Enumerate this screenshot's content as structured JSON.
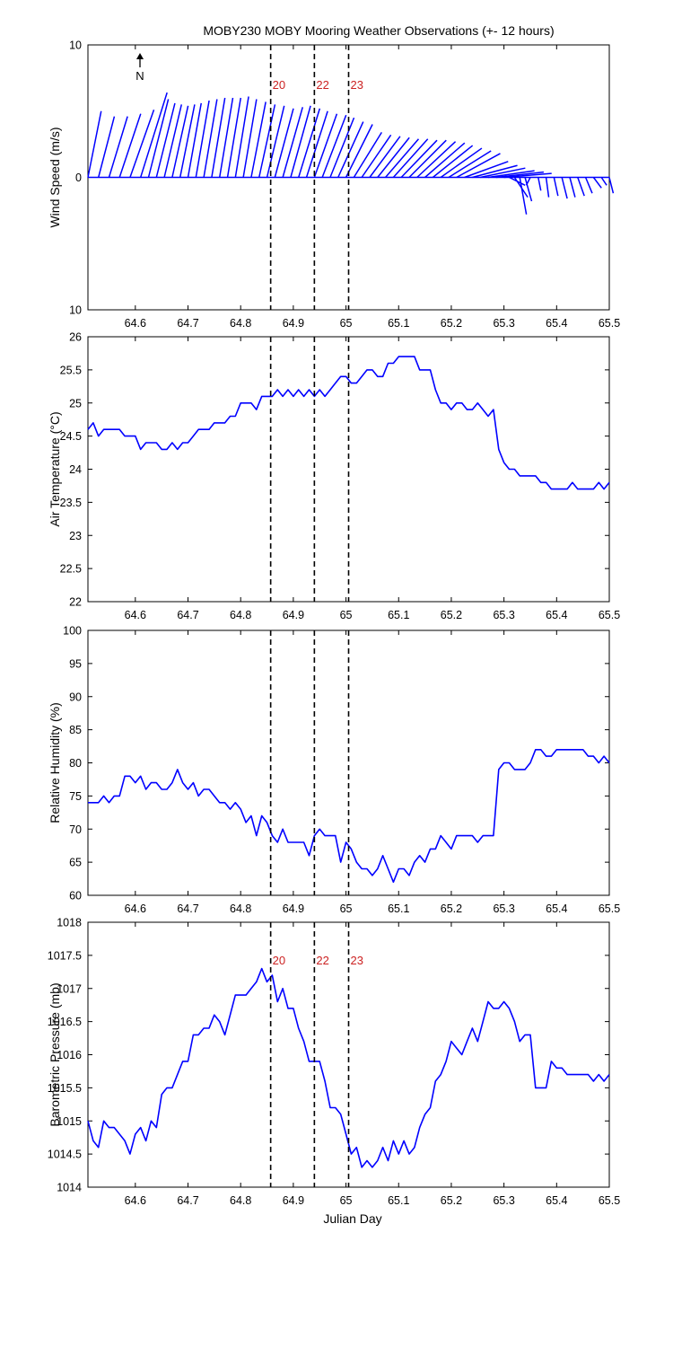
{
  "figure": {
    "title": "MOBY230 MOBY Mooring Weather Observations (+- 12 hours)",
    "xlabel": "Julian Day",
    "north_label": "N"
  },
  "colors": {
    "series": "#0000ff",
    "marker_line": "#000000",
    "marker_label": "#cc2222",
    "axes": "#000000"
  },
  "chart_data": [
    {
      "type": "line",
      "variant": "wind-stick-plot",
      "ylabel": "Wind Speed (m/s)",
      "xlim": [
        64.51,
        65.5
      ],
      "ylim": [
        -10,
        10
      ],
      "yticks": [
        -10,
        0,
        10
      ],
      "ytick_labels": [
        "10",
        "0",
        "10"
      ],
      "xticks": [
        64.6,
        64.7,
        64.8,
        64.9,
        65.0,
        65.1,
        65.2,
        65.3,
        65.4,
        65.5
      ],
      "xtick_labels": [
        "64.6",
        "64.7",
        "64.8",
        "64.9",
        "65",
        "65.1",
        "65.2",
        "65.3",
        "65.4",
        "65.5"
      ],
      "markers": [
        {
          "x": 64.857,
          "label": "20"
        },
        {
          "x": 64.94,
          "label": "22"
        },
        {
          "x": 65.005,
          "label": "23"
        }
      ],
      "sticks": [
        {
          "x": 64.51,
          "u": 1.0,
          "v": 5.0
        },
        {
          "x": 64.53,
          "u": 1.2,
          "v": 4.6
        },
        {
          "x": 64.55,
          "u": 1.4,
          "v": 4.6
        },
        {
          "x": 64.57,
          "u": 1.6,
          "v": 4.8
        },
        {
          "x": 64.59,
          "u": 1.8,
          "v": 5.1
        },
        {
          "x": 64.61,
          "u": 2.0,
          "v": 6.4
        },
        {
          "x": 64.625,
          "u": 1.5,
          "v": 5.9
        },
        {
          "x": 64.64,
          "u": 1.4,
          "v": 5.6
        },
        {
          "x": 64.655,
          "u": 1.3,
          "v": 5.5
        },
        {
          "x": 64.67,
          "u": 1.2,
          "v": 5.4
        },
        {
          "x": 64.685,
          "u": 1.1,
          "v": 5.5
        },
        {
          "x": 64.7,
          "u": 1.0,
          "v": 5.6
        },
        {
          "x": 64.715,
          "u": 1.0,
          "v": 5.8
        },
        {
          "x": 64.73,
          "u": 1.0,
          "v": 5.9
        },
        {
          "x": 64.745,
          "u": 1.0,
          "v": 6.0
        },
        {
          "x": 64.76,
          "u": 1.0,
          "v": 6.0
        },
        {
          "x": 64.775,
          "u": 1.0,
          "v": 6.0
        },
        {
          "x": 64.79,
          "u": 1.0,
          "v": 6.1
        },
        {
          "x": 64.805,
          "u": 1.0,
          "v": 5.9
        },
        {
          "x": 64.82,
          "u": 1.1,
          "v": 5.7
        },
        {
          "x": 64.835,
          "u": 1.2,
          "v": 5.5
        },
        {
          "x": 64.85,
          "u": 1.3,
          "v": 5.4
        },
        {
          "x": 64.865,
          "u": 1.4,
          "v": 5.2
        },
        {
          "x": 64.88,
          "u": 1.5,
          "v": 5.3
        },
        {
          "x": 64.895,
          "u": 1.5,
          "v": 5.4
        },
        {
          "x": 64.91,
          "u": 1.6,
          "v": 5.2
        },
        {
          "x": 64.925,
          "u": 1.6,
          "v": 5.0
        },
        {
          "x": 64.94,
          "u": 1.7,
          "v": 4.8
        },
        {
          "x": 64.955,
          "u": 1.8,
          "v": 4.7
        },
        {
          "x": 64.97,
          "u": 1.8,
          "v": 4.5
        },
        {
          "x": 64.985,
          "u": 1.9,
          "v": 4.2
        },
        {
          "x": 65.0,
          "u": 2.0,
          "v": 4.0
        },
        {
          "x": 65.015,
          "u": 2.1,
          "v": 3.4
        },
        {
          "x": 65.03,
          "u": 2.2,
          "v": 3.2
        },
        {
          "x": 65.045,
          "u": 2.3,
          "v": 3.1
        },
        {
          "x": 65.06,
          "u": 2.4,
          "v": 3.0
        },
        {
          "x": 65.075,
          "u": 2.5,
          "v": 2.9
        },
        {
          "x": 65.09,
          "u": 2.6,
          "v": 2.9
        },
        {
          "x": 65.105,
          "u": 2.7,
          "v": 2.8
        },
        {
          "x": 65.12,
          "u": 2.8,
          "v": 2.8
        },
        {
          "x": 65.135,
          "u": 2.9,
          "v": 2.7
        },
        {
          "x": 65.15,
          "u": 3.0,
          "v": 2.6
        },
        {
          "x": 65.165,
          "u": 3.0,
          "v": 2.4
        },
        {
          "x": 65.18,
          "u": 3.1,
          "v": 2.2
        },
        {
          "x": 65.195,
          "u": 3.2,
          "v": 2.0
        },
        {
          "x": 65.21,
          "u": 3.3,
          "v": 1.8
        },
        {
          "x": 65.225,
          "u": 3.3,
          "v": 1.2
        },
        {
          "x": 65.24,
          "u": 3.4,
          "v": 0.9
        },
        {
          "x": 65.255,
          "u": 3.4,
          "v": 0.7
        },
        {
          "x": 65.27,
          "u": 3.5,
          "v": 0.5
        },
        {
          "x": 65.285,
          "u": 3.6,
          "v": 0.4
        },
        {
          "x": 65.3,
          "u": 3.6,
          "v": 0.3
        },
        {
          "x": 65.31,
          "u": 1.2,
          "v": -0.6
        },
        {
          "x": 65.32,
          "u": 1.0,
          "v": -1.5
        },
        {
          "x": 65.33,
          "u": 0.5,
          "v": -2.8
        },
        {
          "x": 65.34,
          "u": 0.5,
          "v": -1.8
        },
        {
          "x": 65.35,
          "u": -0.3,
          "v": -0.6
        },
        {
          "x": 65.365,
          "u": 0.2,
          "v": -1.0
        },
        {
          "x": 65.38,
          "u": 0.2,
          "v": -1.5
        },
        {
          "x": 65.395,
          "u": 0.3,
          "v": -1.4
        },
        {
          "x": 65.41,
          "u": 0.4,
          "v": -1.6
        },
        {
          "x": 65.425,
          "u": 0.4,
          "v": -1.5
        },
        {
          "x": 65.44,
          "u": 0.5,
          "v": -1.4
        },
        {
          "x": 65.455,
          "u": 0.5,
          "v": -1.2
        },
        {
          "x": 65.47,
          "u": 0.6,
          "v": -0.8
        },
        {
          "x": 65.485,
          "u": 0.4,
          "v": -0.6
        },
        {
          "x": 65.5,
          "u": 0.3,
          "v": -1.2
        }
      ]
    },
    {
      "type": "line",
      "ylabel": "Air Temperature (°C)",
      "xlim": [
        64.51,
        65.5
      ],
      "ylim": [
        22,
        26
      ],
      "yticks": [
        22,
        22.5,
        23,
        23.5,
        24,
        24.5,
        25,
        25.5,
        26
      ],
      "ytick_labels": [
        "22",
        "22.5",
        "23",
        "23.5",
        "24",
        "24.5",
        "25",
        "25.5",
        "26"
      ],
      "xticks": [
        64.6,
        64.7,
        64.8,
        64.9,
        65.0,
        65.1,
        65.2,
        65.3,
        65.4,
        65.5
      ],
      "xtick_labels": [
        "64.6",
        "64.7",
        "64.8",
        "64.9",
        "65",
        "65.1",
        "65.2",
        "65.3",
        "65.4",
        "65.5"
      ],
      "markers": [
        {
          "x": 64.857,
          "label": ""
        },
        {
          "x": 64.94,
          "label": ""
        },
        {
          "x": 65.005,
          "label": ""
        }
      ],
      "x": [
        64.51,
        64.52,
        64.53,
        64.54,
        64.55,
        64.56,
        64.57,
        64.58,
        64.59,
        64.6,
        64.61,
        64.62,
        64.63,
        64.64,
        64.65,
        64.66,
        64.67,
        64.68,
        64.69,
        64.7,
        64.71,
        64.72,
        64.73,
        64.74,
        64.75,
        64.76,
        64.77,
        64.78,
        64.79,
        64.8,
        64.81,
        64.82,
        64.83,
        64.84,
        64.85,
        64.86,
        64.87,
        64.88,
        64.89,
        64.9,
        64.91,
        64.92,
        64.93,
        64.94,
        64.95,
        64.96,
        64.97,
        64.98,
        64.99,
        65.0,
        65.01,
        65.02,
        65.03,
        65.04,
        65.05,
        65.06,
        65.07,
        65.08,
        65.09,
        65.1,
        65.11,
        65.12,
        65.13,
        65.14,
        65.15,
        65.16,
        65.17,
        65.18,
        65.19,
        65.2,
        65.21,
        65.22,
        65.23,
        65.24,
        65.25,
        65.26,
        65.27,
        65.28,
        65.29,
        65.3,
        65.31,
        65.32,
        65.33,
        65.34,
        65.35,
        65.36,
        65.37,
        65.38,
        65.39,
        65.4,
        65.41,
        65.42,
        65.43,
        65.44,
        65.45,
        65.46,
        65.47,
        65.48,
        65.49,
        65.5
      ],
      "y": [
        24.6,
        24.7,
        24.5,
        24.6,
        24.6,
        24.6,
        24.6,
        24.5,
        24.5,
        24.5,
        24.3,
        24.4,
        24.4,
        24.4,
        24.3,
        24.3,
        24.4,
        24.3,
        24.4,
        24.4,
        24.5,
        24.6,
        24.6,
        24.6,
        24.7,
        24.7,
        24.7,
        24.8,
        24.8,
        25.0,
        25.0,
        25.0,
        24.9,
        25.1,
        25.1,
        25.1,
        25.2,
        25.1,
        25.2,
        25.1,
        25.2,
        25.1,
        25.2,
        25.1,
        25.2,
        25.1,
        25.2,
        25.3,
        25.4,
        25.4,
        25.3,
        25.3,
        25.4,
        25.5,
        25.5,
        25.4,
        25.4,
        25.6,
        25.6,
        25.7,
        25.7,
        25.7,
        25.7,
        25.5,
        25.5,
        25.5,
        25.2,
        25.0,
        25.0,
        24.9,
        25.0,
        25.0,
        24.9,
        24.9,
        25.0,
        24.9,
        24.8,
        24.9,
        24.3,
        24.1,
        24.0,
        24.0,
        23.9,
        23.9,
        23.9,
        23.9,
        23.8,
        23.8,
        23.7,
        23.7,
        23.7,
        23.7,
        23.8,
        23.7,
        23.7,
        23.7,
        23.7,
        23.8,
        23.7,
        23.8
      ]
    },
    {
      "type": "line",
      "ylabel": "Relative Humidity (%)",
      "xlim": [
        64.51,
        65.5
      ],
      "ylim": [
        60,
        100
      ],
      "yticks": [
        60,
        65,
        70,
        75,
        80,
        85,
        90,
        95,
        100
      ],
      "ytick_labels": [
        "60",
        "65",
        "70",
        "75",
        "80",
        "85",
        "90",
        "95",
        "100"
      ],
      "xticks": [
        64.6,
        64.7,
        64.8,
        64.9,
        65.0,
        65.1,
        65.2,
        65.3,
        65.4,
        65.5
      ],
      "xtick_labels": [
        "64.6",
        "64.7",
        "64.8",
        "64.9",
        "65",
        "65.1",
        "65.2",
        "65.3",
        "65.4",
        "65.5"
      ],
      "markers": [
        {
          "x": 64.857,
          "label": ""
        },
        {
          "x": 64.94,
          "label": ""
        },
        {
          "x": 65.005,
          "label": ""
        }
      ],
      "x": [
        64.51,
        64.52,
        64.53,
        64.54,
        64.55,
        64.56,
        64.57,
        64.58,
        64.59,
        64.6,
        64.61,
        64.62,
        64.63,
        64.64,
        64.65,
        64.66,
        64.67,
        64.68,
        64.69,
        64.7,
        64.71,
        64.72,
        64.73,
        64.74,
        64.75,
        64.76,
        64.77,
        64.78,
        64.79,
        64.8,
        64.81,
        64.82,
        64.83,
        64.84,
        64.85,
        64.86,
        64.87,
        64.88,
        64.89,
        64.9,
        64.91,
        64.92,
        64.93,
        64.94,
        64.95,
        64.96,
        64.97,
        64.98,
        64.99,
        65.0,
        65.01,
        65.02,
        65.03,
        65.04,
        65.05,
        65.06,
        65.07,
        65.08,
        65.09,
        65.1,
        65.11,
        65.12,
        65.13,
        65.14,
        65.15,
        65.16,
        65.17,
        65.18,
        65.19,
        65.2,
        65.21,
        65.22,
        65.23,
        65.24,
        65.25,
        65.26,
        65.27,
        65.28,
        65.29,
        65.3,
        65.31,
        65.32,
        65.33,
        65.34,
        65.35,
        65.36,
        65.37,
        65.38,
        65.39,
        65.4,
        65.41,
        65.42,
        65.43,
        65.44,
        65.45,
        65.46,
        65.47,
        65.48,
        65.49,
        65.5
      ],
      "y": [
        74,
        74,
        74,
        75,
        74,
        75,
        75,
        78,
        78,
        77,
        78,
        76,
        77,
        77,
        76,
        76,
        77,
        79,
        77,
        76,
        77,
        75,
        76,
        76,
        75,
        74,
        74,
        73,
        74,
        73,
        71,
        72,
        69,
        72,
        71,
        69,
        68,
        70,
        68,
        68,
        68,
        68,
        66,
        69,
        70,
        69,
        69,
        69,
        65,
        68,
        67,
        65,
        64,
        64,
        63,
        64,
        66,
        64,
        62,
        64,
        64,
        63,
        65,
        66,
        65,
        67,
        67,
        69,
        68,
        67,
        69,
        69,
        69,
        69,
        68,
        69,
        69,
        69,
        79,
        80,
        80,
        79,
        79,
        79,
        80,
        82,
        82,
        81,
        81,
        82,
        82,
        82,
        82,
        82,
        82,
        81,
        81,
        80,
        81,
        80
      ]
    },
    {
      "type": "line",
      "ylabel": "Barometric Pressure (mb)",
      "xlim": [
        64.51,
        65.5
      ],
      "ylim": [
        1014,
        1018
      ],
      "yticks": [
        1014,
        1014.5,
        1015,
        1015.5,
        1016,
        1016.5,
        1017,
        1017.5,
        1018
      ],
      "ytick_labels": [
        "1014",
        "1014.5",
        "1015",
        "1015.5",
        "1016",
        "1016.5",
        "1017",
        "1017.5",
        "1018"
      ],
      "xticks": [
        64.6,
        64.7,
        64.8,
        64.9,
        65.0,
        65.1,
        65.2,
        65.3,
        65.4,
        65.5
      ],
      "xtick_labels": [
        "64.6",
        "64.7",
        "64.8",
        "64.9",
        "65",
        "65.1",
        "65.2",
        "65.3",
        "65.4",
        "65.5"
      ],
      "markers": [
        {
          "x": 64.857,
          "label": "20"
        },
        {
          "x": 64.94,
          "label": "22"
        },
        {
          "x": 65.005,
          "label": "23"
        }
      ],
      "x": [
        64.51,
        64.52,
        64.53,
        64.54,
        64.55,
        64.56,
        64.57,
        64.58,
        64.59,
        64.6,
        64.61,
        64.62,
        64.63,
        64.64,
        64.65,
        64.66,
        64.67,
        64.68,
        64.69,
        64.7,
        64.71,
        64.72,
        64.73,
        64.74,
        64.75,
        64.76,
        64.77,
        64.78,
        64.79,
        64.8,
        64.81,
        64.82,
        64.83,
        64.84,
        64.85,
        64.86,
        64.87,
        64.88,
        64.89,
        64.9,
        64.91,
        64.92,
        64.93,
        64.94,
        64.95,
        64.96,
        64.97,
        64.98,
        64.99,
        65.0,
        65.01,
        65.02,
        65.03,
        65.04,
        65.05,
        65.06,
        65.07,
        65.08,
        65.09,
        65.1,
        65.11,
        65.12,
        65.13,
        65.14,
        65.15,
        65.16,
        65.17,
        65.18,
        65.19,
        65.2,
        65.21,
        65.22,
        65.23,
        65.24,
        65.25,
        65.26,
        65.27,
        65.28,
        65.29,
        65.3,
        65.31,
        65.32,
        65.33,
        65.34,
        65.35,
        65.36,
        65.37,
        65.38,
        65.39,
        65.4,
        65.41,
        65.42,
        65.43,
        65.44,
        65.45,
        65.46,
        65.47,
        65.48,
        65.49,
        65.5
      ],
      "y": [
        1015.0,
        1014.7,
        1014.6,
        1015.0,
        1014.9,
        1014.9,
        1014.8,
        1014.7,
        1014.5,
        1014.8,
        1014.9,
        1014.7,
        1015.0,
        1014.9,
        1015.4,
        1015.5,
        1015.5,
        1015.7,
        1015.9,
        1015.9,
        1016.3,
        1016.3,
        1016.4,
        1016.4,
        1016.6,
        1016.5,
        1016.3,
        1016.6,
        1016.9,
        1016.9,
        1016.9,
        1017.0,
        1017.1,
        1017.3,
        1017.1,
        1017.2,
        1016.8,
        1017.0,
        1016.7,
        1016.7,
        1016.4,
        1016.2,
        1015.9,
        1015.9,
        1015.9,
        1015.6,
        1015.2,
        1015.2,
        1015.1,
        1014.8,
        1014.5,
        1014.6,
        1014.3,
        1014.4,
        1014.3,
        1014.4,
        1014.6,
        1014.4,
        1014.7,
        1014.5,
        1014.7,
        1014.5,
        1014.6,
        1014.9,
        1015.1,
        1015.2,
        1015.6,
        1015.7,
        1015.9,
        1016.2,
        1016.1,
        1016.0,
        1016.2,
        1016.4,
        1016.2,
        1016.5,
        1016.8,
        1016.7,
        1016.7,
        1016.8,
        1016.7,
        1016.5,
        1016.2,
        1016.3,
        1016.3,
        1015.5,
        1015.5,
        1015.5,
        1015.9,
        1015.8,
        1015.8,
        1015.7,
        1015.7,
        1015.7,
        1015.7,
        1015.7,
        1015.6,
        1015.7,
        1015.6,
        1015.7
      ]
    }
  ]
}
